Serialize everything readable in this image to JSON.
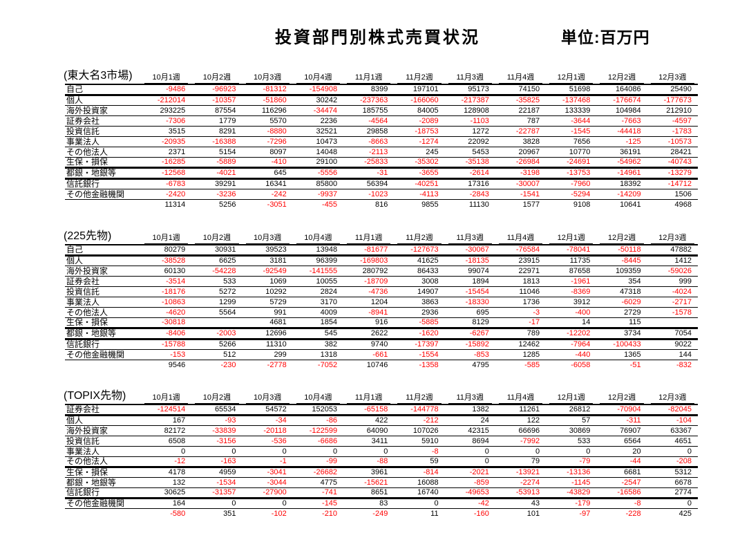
{
  "page_title": "投資部門別株式売買状況",
  "unit_label": "単位:百万円",
  "colors": {
    "negative_value": "#ff0000",
    "text": "#000000"
  },
  "week_columns": [
    "10月1週",
    "10月2週",
    "10月3週",
    "10月4週",
    "11月1週",
    "11月2週",
    "11月3週",
    "11月4週",
    "12月1週",
    "12月2週",
    "12月3週"
  ],
  "tables": [
    {
      "section_label": "(東大名3市場)",
      "rows": [
        {
          "label": "自己",
          "values": [
            -9486,
            -96923,
            -81312,
            -154908,
            8399,
            197101,
            95173,
            74150,
            51698,
            164086,
            25490
          ],
          "thick_border_after": true
        },
        {
          "label": "個人",
          "values": [
            -212014,
            -10357,
            -51860,
            30242,
            -237363,
            -166060,
            -217387,
            -35825,
            -137468,
            -176674,
            -177673
          ],
          "thick_border_after": false
        },
        {
          "label": "海外投資家",
          "values": [
            293225,
            87554,
            116296,
            -34474,
            185755,
            84005,
            128908,
            22187,
            133339,
            104984,
            212910
          ],
          "thick_border_after": false
        },
        {
          "label": "証券会社",
          "values": [
            -7306,
            1779,
            5570,
            2236,
            -4564,
            -2089,
            -1103,
            787,
            -3644,
            -7663,
            -4597
          ],
          "thick_border_after": false
        },
        {
          "label": "投資信託",
          "values": [
            3515,
            8291,
            -8880,
            32521,
            29858,
            -18753,
            1272,
            -22787,
            -1545,
            -44418,
            -1783
          ],
          "thick_border_after": false
        },
        {
          "label": "事業法人",
          "values": [
            -20935,
            -16388,
            -7296,
            10473,
            -8663,
            -1274,
            22092,
            3828,
            7656,
            -125,
            -10573
          ],
          "thick_border_after": false
        },
        {
          "label": "その他法人",
          "values": [
            2371,
            5154,
            8097,
            14048,
            -2113,
            245,
            5453,
            20967,
            10770,
            36191,
            28421
          ],
          "thick_border_after": false
        },
        {
          "label": "生保・損保",
          "values": [
            -16285,
            -5889,
            -410,
            29100,
            -25833,
            -35302,
            -35138,
            -26984,
            -24691,
            -54962,
            -40743
          ],
          "thick_border_after": true
        },
        {
          "label": "都銀・地銀等",
          "values": [
            -12568,
            -4021,
            645,
            -5556,
            -31,
            -3655,
            -2614,
            -3198,
            -13753,
            -14961,
            -13279
          ],
          "thick_border_after": true
        },
        {
          "label": "信託銀行",
          "values": [
            -6783,
            39291,
            16341,
            85800,
            56394,
            -40251,
            17316,
            -30007,
            -7960,
            18392,
            -14712
          ],
          "thick_border_after": false
        },
        {
          "label": "その他金融機関",
          "values": [
            -2420,
            -3236,
            -242,
            -9937,
            -1023,
            -4113,
            -2843,
            -1541,
            -5294,
            -14209,
            1506
          ],
          "thick_border_after": false
        }
      ],
      "total_row": [
        11314,
        5256,
        -3051,
        -455,
        816,
        9855,
        11130,
        1577,
        9108,
        10641,
        4968
      ]
    },
    {
      "section_label": "(225先物)",
      "rows": [
        {
          "label": "自己",
          "values": [
            80279,
            30931,
            39523,
            13948,
            -81677,
            -127673,
            -30067,
            -76584,
            -78041,
            -50118,
            47882
          ],
          "thick_border_after": true
        },
        {
          "label": "個人",
          "values": [
            -38528,
            6625,
            3181,
            96399,
            -169803,
            41625,
            -18135,
            23915,
            11735,
            -8445,
            1412
          ],
          "thick_border_after": false
        },
        {
          "label": "海外投資家",
          "values": [
            60130,
            -54228,
            -92549,
            -141555,
            280792,
            86433,
            99074,
            22971,
            87658,
            109359,
            -59026
          ],
          "thick_border_after": false
        },
        {
          "label": "証券会社",
          "values": [
            -3514,
            533,
            1069,
            10055,
            -18709,
            3008,
            1894,
            1813,
            -1961,
            354,
            999
          ],
          "thick_border_after": false
        },
        {
          "label": "投資信託",
          "values": [
            -18176,
            5272,
            10292,
            2824,
            -4736,
            14907,
            -15454,
            11046,
            -8369,
            47318,
            -4024
          ],
          "thick_border_after": false
        },
        {
          "label": "事業法人",
          "values": [
            -10863,
            1299,
            5729,
            3170,
            1204,
            3863,
            -18330,
            1736,
            3912,
            -6029,
            -2717
          ],
          "thick_border_after": false
        },
        {
          "label": "その他法人",
          "values": [
            -4620,
            5564,
            991,
            4009,
            -8941,
            2936,
            695,
            -3,
            -400,
            2729,
            -1578
          ],
          "thick_border_after": false
        },
        {
          "label": "生保・損保",
          "values": [
            -30818,
            null,
            4681,
            1854,
            916,
            -5885,
            8129,
            -17,
            14,
            115,
            null
          ],
          "thick_border_after": true
        },
        {
          "label": "都銀・地銀等",
          "values": [
            -8406,
            -2003,
            12696,
            545,
            2622,
            -1620,
            -6267,
            789,
            -12202,
            3734,
            7054
          ],
          "thick_border_after": true
        },
        {
          "label": "信託銀行",
          "values": [
            -15788,
            5266,
            11310,
            382,
            9740,
            -17397,
            -15892,
            12462,
            -7964,
            -100433,
            9022
          ],
          "thick_border_after": false
        },
        {
          "label": "その他金融機関",
          "values": [
            -153,
            512,
            299,
            1318,
            -661,
            -1554,
            -853,
            1285,
            -440,
            1365,
            144
          ],
          "thick_border_after": false
        }
      ],
      "total_row": [
        9546,
        -230,
        -2778,
        -7052,
        10746,
        -1358,
        4795,
        -585,
        -6058,
        -51,
        -832
      ]
    },
    {
      "section_label": "(TOPIX先物)",
      "rows": [
        {
          "label": "証券会社",
          "values": [
            -124514,
            65534,
            54572,
            152053,
            -65158,
            -144778,
            1382,
            11261,
            26812,
            -70904,
            -82045
          ],
          "thick_border_after": true
        },
        {
          "label": "個人",
          "values": [
            167,
            -93,
            -34,
            -86,
            422,
            -212,
            24,
            122,
            57,
            -311,
            -104
          ],
          "thick_border_after": false
        },
        {
          "label": "海外投資家",
          "values": [
            82172,
            -33839,
            -20118,
            -122599,
            64090,
            107026,
            42315,
            66696,
            30869,
            76907,
            63367
          ],
          "thick_border_after": false
        },
        {
          "label": "投資信託",
          "values": [
            6508,
            -3156,
            -536,
            -6686,
            3411,
            5910,
            8694,
            -7992,
            533,
            6564,
            4651
          ],
          "thick_border_after": false
        },
        {
          "label": "事業法人",
          "values": [
            0,
            0,
            0,
            0,
            0,
            -8,
            0,
            0,
            0,
            20,
            0
          ],
          "thick_border_after": false
        },
        {
          "label": "その他法人",
          "values": [
            -12,
            -163,
            -1,
            -99,
            -88,
            59,
            0,
            79,
            -79,
            -44,
            -208
          ],
          "thick_border_after": true
        },
        {
          "label": "生保・損保",
          "values": [
            4178,
            4959,
            -3041,
            -26682,
            3961,
            -814,
            -2021,
            -13921,
            -13136,
            6681,
            5312
          ],
          "thick_border_after": false
        },
        {
          "label": "都銀・地銀等",
          "values": [
            132,
            -1534,
            -3044,
            4775,
            -15621,
            16088,
            -859,
            -2274,
            -1145,
            -2547,
            6678
          ],
          "thick_border_after": false
        },
        {
          "label": "信託銀行",
          "values": [
            30625,
            -31357,
            -27900,
            -741,
            8651,
            16740,
            -49653,
            -53913,
            -43829,
            -16586,
            2774
          ],
          "thick_border_after": true
        },
        {
          "label": "その他金融機関",
          "values": [
            164,
            0,
            0,
            -145,
            83,
            0,
            -42,
            43,
            -179,
            -8,
            0
          ],
          "thick_border_after": false
        }
      ],
      "total_row": [
        -580,
        351,
        -102,
        -210,
        -249,
        11,
        -160,
        101,
        -97,
        -228,
        425
      ]
    }
  ]
}
